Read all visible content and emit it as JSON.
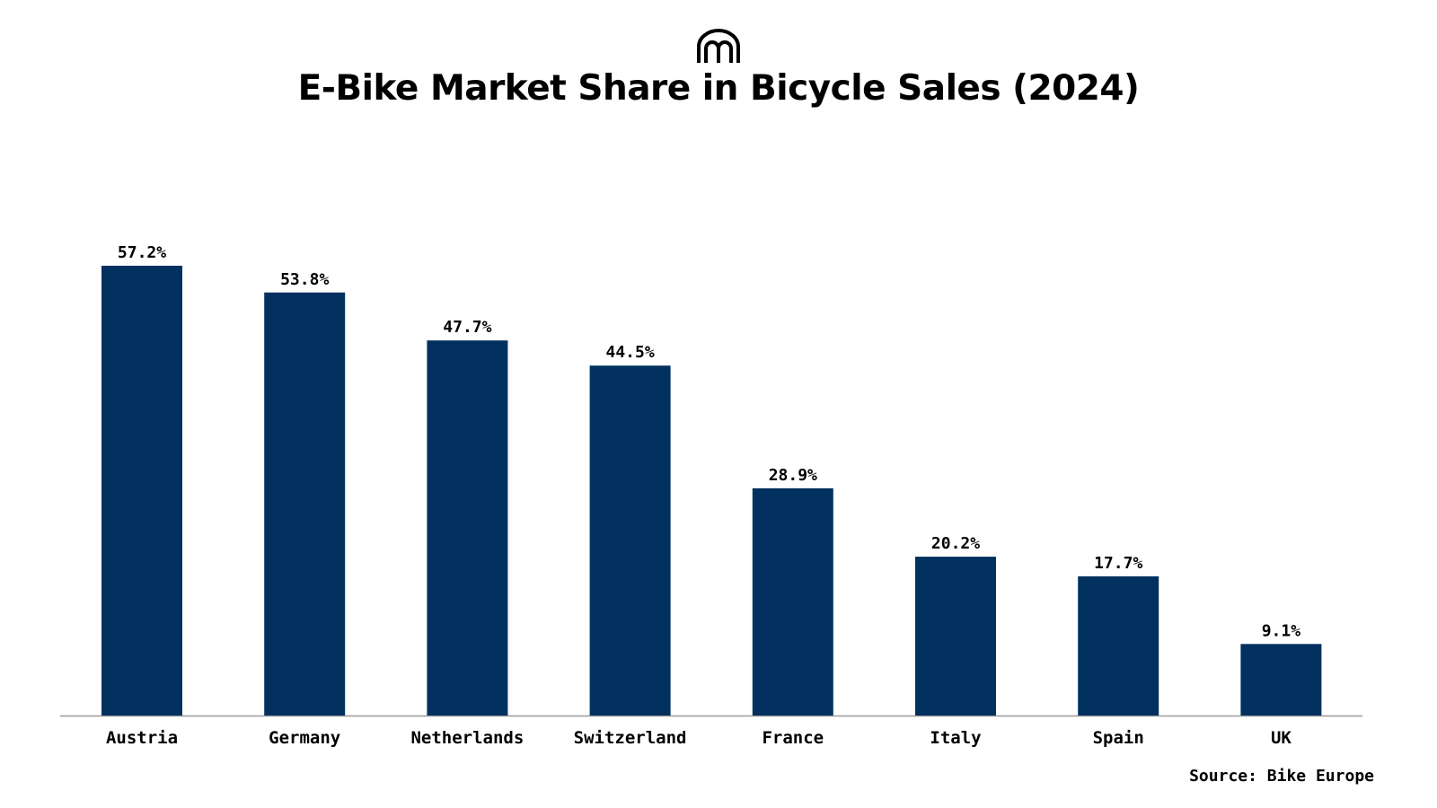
{
  "brand": {
    "logo_icon": "arch-logo-icon"
  },
  "colors": {
    "bar": "#03315f",
    "axis": "#9a9a9a",
    "text": "#000000"
  },
  "source": "Source: Bike Europe",
  "chart_data": {
    "type": "bar",
    "title": "E-Bike Market Share in Bicycle Sales (2024)",
    "categories": [
      "Austria",
      "Germany",
      "Netherlands",
      "Switzerland",
      "France",
      "Italy",
      "Spain",
      "UK"
    ],
    "values": [
      57.2,
      53.8,
      47.7,
      44.5,
      28.9,
      20.2,
      17.7,
      9.1
    ],
    "value_labels": [
      "57.2%",
      "53.8%",
      "47.7%",
      "44.5%",
      "28.9%",
      "20.2%",
      "17.7%",
      "9.1%"
    ],
    "xlabel": "",
    "ylabel": "",
    "ylim": [
      0,
      57.2
    ],
    "grid": false,
    "legend": "none"
  }
}
